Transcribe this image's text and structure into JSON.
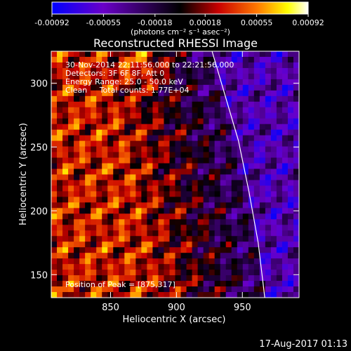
{
  "chart_data": {
    "type": "heatmap",
    "title": "Reconstructed RHESSI Image",
    "xlabel": "Heliocentric X (arcsec)",
    "ylabel": "Heliocentric Y (arcsec)",
    "x_ticks": [
      850,
      900,
      950
    ],
    "y_ticks": [
      150,
      200,
      250,
      300
    ],
    "xlim": [
      805,
      993
    ],
    "ylim": [
      132,
      325
    ],
    "colorbar": {
      "ticks": [
        "-0.00092",
        "-0.00055",
        "-0.00018",
        "0.00018",
        "0.00055",
        "0.00092"
      ],
      "min": -0.00092,
      "max": 0.00092,
      "unit_label": "(photons cm⁻² s⁻¹ asec⁻²)",
      "colors": [
        "#0000ff",
        "#6a00c8",
        "#000000",
        "#c80000",
        "#ff7800",
        "#ffff00",
        "#ffffff"
      ]
    },
    "annotations": [
      "30-Nov-2014 22:11:56.000 to 22:21:56.000",
      "Detectors: 3F 6F 8F, Att 0",
      "Energy Range: 25.0 - 50.0 keV",
      "Clean     Total counts: 1.77E+04"
    ],
    "peak_label": "Position of Peak = [875,317]",
    "peak": [
      875,
      317
    ],
    "limb": [
      [
        927,
        325
      ],
      [
        937,
        290
      ],
      [
        947,
        255
      ],
      [
        955,
        215
      ],
      [
        962,
        175
      ],
      [
        967,
        132
      ]
    ]
  },
  "footer": {
    "timestamp": "17-Aug-2017 01:13"
  }
}
